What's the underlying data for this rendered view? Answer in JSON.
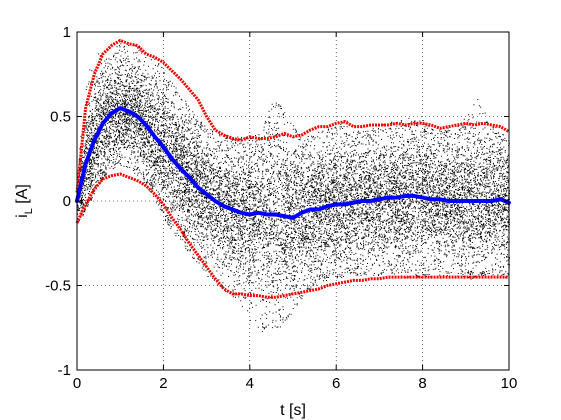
{
  "chart_data": {
    "type": "scatter",
    "title": "",
    "xlabel": "t [s]",
    "ylabel": "i_L [A]",
    "ylabel_parts": {
      "main": "i",
      "sub": "L",
      "rest": " [A]"
    },
    "xlim": [
      0,
      10
    ],
    "ylim": [
      -1,
      1
    ],
    "x_ticks": [
      0,
      2,
      4,
      6,
      8,
      10
    ],
    "x_tick_labels": [
      "0",
      "2",
      "4",
      "6",
      "8",
      "10"
    ],
    "y_ticks": [
      -1,
      -0.5,
      0,
      0.5,
      1
    ],
    "y_tick_labels": [
      "-1",
      "-0.5",
      "0",
      "0.5",
      "1"
    ],
    "grid": true,
    "grid_style": "dotted",
    "legend": "none",
    "colors": {
      "samples": "#000000",
      "bounds": "#ff0000",
      "mean": "#0000ff"
    },
    "series": [
      {
        "role": "samples",
        "style": "scatter-cloud",
        "x": [
          0.0,
          0.25,
          0.5,
          0.75,
          1.0,
          1.25,
          1.5,
          1.75,
          2.0,
          2.25,
          2.5,
          2.75,
          3.0,
          3.25,
          3.5,
          3.75,
          4.0,
          4.25,
          4.5,
          4.75,
          5.0,
          5.25,
          5.5,
          5.75,
          6.0,
          6.25,
          6.5,
          6.75,
          7.0,
          7.25,
          7.5,
          7.75,
          8.0,
          8.25,
          8.5,
          8.75,
          9.0,
          9.25,
          9.5,
          9.75,
          10.0
        ],
        "upper": [
          0.2,
          0.78,
          0.88,
          0.93,
          0.95,
          0.93,
          0.91,
          0.86,
          0.78,
          0.69,
          0.6,
          0.5,
          0.44,
          0.4,
          0.39,
          0.38,
          0.39,
          0.4,
          0.6,
          0.56,
          0.45,
          0.37,
          0.41,
          0.44,
          0.47,
          0.48,
          0.42,
          0.42,
          0.45,
          0.47,
          0.48,
          0.5,
          0.48,
          0.42,
          0.44,
          0.43,
          0.5,
          0.62,
          0.5,
          0.42,
          0.38
        ],
        "lower": [
          -0.15,
          -0.03,
          0.1,
          0.18,
          0.21,
          0.18,
          0.12,
          0.03,
          -0.1,
          -0.2,
          -0.28,
          -0.36,
          -0.44,
          -0.5,
          -0.55,
          -0.6,
          -0.72,
          -0.78,
          -0.75,
          -0.74,
          -0.65,
          -0.56,
          -0.5,
          -0.47,
          -0.46,
          -0.44,
          -0.44,
          -0.45,
          -0.44,
          -0.43,
          -0.46,
          -0.45,
          -0.45,
          -0.45,
          -0.45,
          -0.45,
          -0.46,
          -0.46,
          -0.44,
          -0.46,
          -0.46
        ]
      },
      {
        "role": "upper-bound",
        "style": "dotted-line",
        "x": [
          0.0,
          0.2,
          0.4,
          0.6,
          0.8,
          1.0,
          1.2,
          1.4,
          1.6,
          1.8,
          2.0,
          2.2,
          2.4,
          2.6,
          2.8,
          3.0,
          3.2,
          3.4,
          3.6,
          3.8,
          4.0,
          4.2,
          4.4,
          4.6,
          4.8,
          5.0,
          5.2,
          5.4,
          5.6,
          5.8,
          6.0,
          6.2,
          6.4,
          6.6,
          6.8,
          7.0,
          7.2,
          7.4,
          7.6,
          7.8,
          8.0,
          8.2,
          8.4,
          8.6,
          8.8,
          9.0,
          9.2,
          9.4,
          9.6,
          9.8,
          10.0
        ],
        "values": [
          0.05,
          0.55,
          0.75,
          0.87,
          0.92,
          0.95,
          0.93,
          0.92,
          0.87,
          0.85,
          0.82,
          0.77,
          0.72,
          0.66,
          0.6,
          0.5,
          0.42,
          0.39,
          0.37,
          0.36,
          0.38,
          0.37,
          0.37,
          0.38,
          0.4,
          0.38,
          0.39,
          0.42,
          0.44,
          0.44,
          0.46,
          0.47,
          0.44,
          0.44,
          0.45,
          0.45,
          0.45,
          0.46,
          0.45,
          0.46,
          0.46,
          0.45,
          0.43,
          0.44,
          0.45,
          0.46,
          0.45,
          0.46,
          0.45,
          0.44,
          0.41
        ]
      },
      {
        "role": "lower-bound",
        "style": "dotted-line",
        "x": [
          0.0,
          0.2,
          0.4,
          0.6,
          0.8,
          1.0,
          1.2,
          1.4,
          1.6,
          1.8,
          2.0,
          2.2,
          2.4,
          2.6,
          2.8,
          3.0,
          3.2,
          3.4,
          3.6,
          3.8,
          4.0,
          4.2,
          4.4,
          4.6,
          4.8,
          5.0,
          5.2,
          5.4,
          5.6,
          5.8,
          6.0,
          6.2,
          6.4,
          6.6,
          6.8,
          7.0,
          7.2,
          7.4,
          7.6,
          7.8,
          8.0,
          8.2,
          8.4,
          8.6,
          8.8,
          9.0,
          9.2,
          9.4,
          9.6,
          9.8,
          10.0
        ],
        "values": [
          -0.13,
          -0.02,
          0.07,
          0.13,
          0.15,
          0.16,
          0.14,
          0.12,
          0.09,
          0.04,
          -0.02,
          -0.1,
          -0.17,
          -0.25,
          -0.32,
          -0.39,
          -0.46,
          -0.52,
          -0.55,
          -0.55,
          -0.56,
          -0.56,
          -0.57,
          -0.57,
          -0.56,
          -0.55,
          -0.54,
          -0.53,
          -0.52,
          -0.5,
          -0.49,
          -0.48,
          -0.47,
          -0.47,
          -0.46,
          -0.46,
          -0.45,
          -0.45,
          -0.45,
          -0.45,
          -0.45,
          -0.45,
          -0.45,
          -0.45,
          -0.45,
          -0.45,
          -0.45,
          -0.45,
          -0.45,
          -0.45,
          -0.45
        ]
      },
      {
        "role": "mean",
        "style": "line",
        "x": [
          0.0,
          0.2,
          0.4,
          0.6,
          0.8,
          1.0,
          1.2,
          1.4,
          1.6,
          1.8,
          2.0,
          2.2,
          2.4,
          2.6,
          2.8,
          3.0,
          3.2,
          3.4,
          3.6,
          3.8,
          4.0,
          4.2,
          4.4,
          4.6,
          4.8,
          5.0,
          5.2,
          5.4,
          5.6,
          5.8,
          6.0,
          6.2,
          6.4,
          6.6,
          6.8,
          7.0,
          7.2,
          7.4,
          7.6,
          7.8,
          8.0,
          8.2,
          8.4,
          8.6,
          8.8,
          9.0,
          9.2,
          9.4,
          9.6,
          9.8,
          10.0
        ],
        "values": [
          0.0,
          0.22,
          0.36,
          0.46,
          0.52,
          0.55,
          0.53,
          0.5,
          0.45,
          0.38,
          0.32,
          0.25,
          0.19,
          0.14,
          0.08,
          0.04,
          0.0,
          -0.03,
          -0.05,
          -0.07,
          -0.08,
          -0.07,
          -0.08,
          -0.08,
          -0.09,
          -0.1,
          -0.07,
          -0.05,
          -0.05,
          -0.03,
          -0.02,
          -0.02,
          -0.01,
          0.0,
          0.0,
          0.01,
          0.02,
          0.02,
          0.03,
          0.03,
          0.02,
          0.01,
          0.01,
          0.0,
          0.0,
          0.0,
          0.0,
          0.0,
          0.0,
          0.01,
          -0.01
        ]
      }
    ]
  }
}
